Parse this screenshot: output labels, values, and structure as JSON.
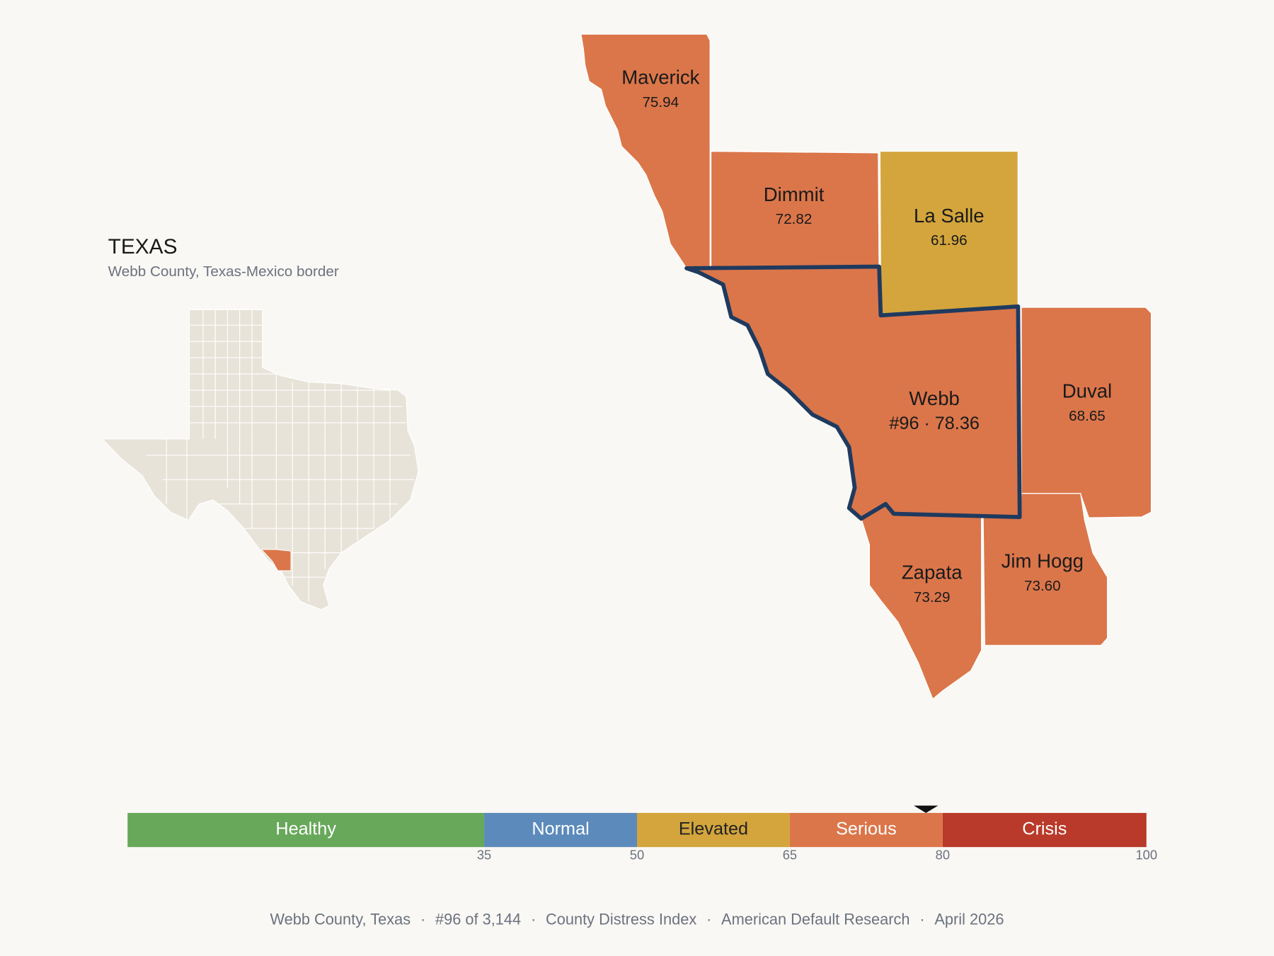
{
  "header": {
    "title": "TEXAS",
    "subtitle": "Webb County, Texas-Mexico border"
  },
  "counties": [
    {
      "name": "Maverick",
      "score": 75.94,
      "color": "#db764a"
    },
    {
      "name": "Dimmit",
      "score": 72.82,
      "color": "#db764a"
    },
    {
      "name": "La Salle",
      "score": 61.96,
      "color": "#d3a53c"
    },
    {
      "name": "Webb",
      "rank": "#96",
      "score": 78.36,
      "color": "#db764a",
      "highlight": true
    },
    {
      "name": "Duval",
      "score": 68.65,
      "color": "#db764a"
    },
    {
      "name": "Zapata",
      "score": 73.29,
      "color": "#db764a"
    },
    {
      "name": "Jim Hogg",
      "score": 73.6,
      "score_label": "73.60",
      "color": "#db764a"
    }
  ],
  "separator": "·",
  "scale": {
    "range": [
      0,
      100
    ],
    "ticks": [
      35,
      50,
      65,
      80,
      100
    ],
    "segments": [
      {
        "name": "Healthy",
        "color": "#67a85a",
        "label_color": "#ffffff"
      },
      {
        "name": "Normal",
        "color": "#5b8abb",
        "label_color": "#ffffff"
      },
      {
        "name": "Elevated",
        "color": "#d3a53c",
        "label_color": "#222222"
      },
      {
        "name": "Serious",
        "color": "#db764a",
        "label_color": "#ffffff"
      },
      {
        "name": "Crisis",
        "color": "#b93a2a",
        "label_color": "#ffffff"
      }
    ]
  },
  "footer": [
    "Webb County, Texas",
    "#96 of 3,144",
    "County Distress Index",
    "American Default Research",
    "April 2026"
  ]
}
